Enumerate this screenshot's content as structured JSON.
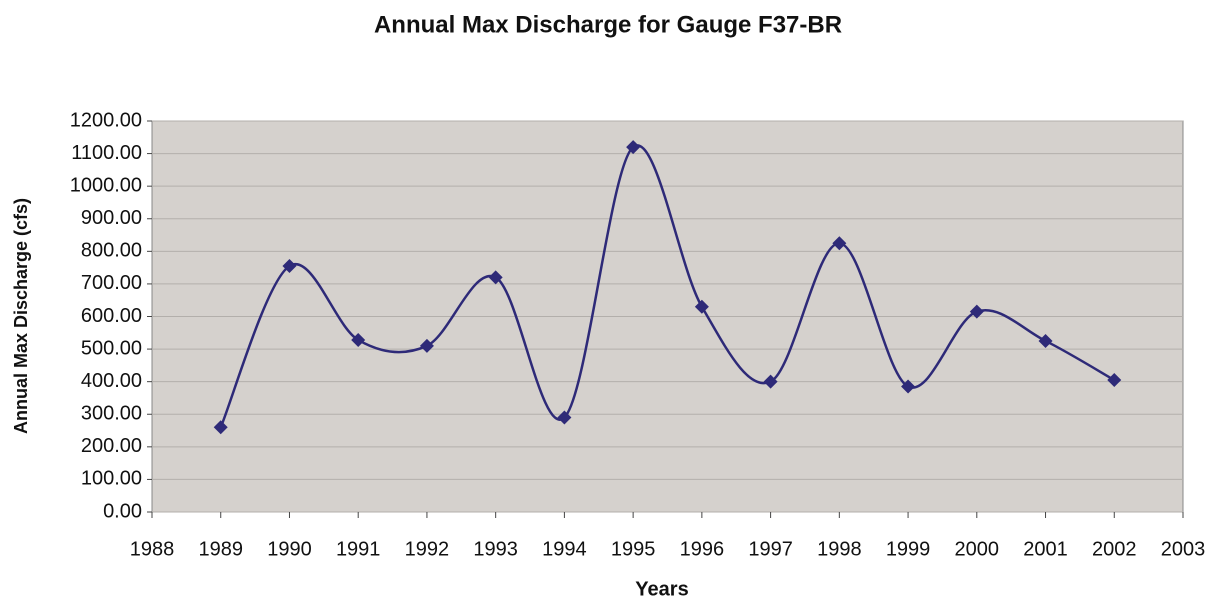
{
  "chart_data": {
    "type": "line",
    "title": "Annual Max Discharge for Gauge F37-BR",
    "xlabel": "Years",
    "ylabel": "Annual Max Discharge (cfs)",
    "x": [
      1989,
      1990,
      1991,
      1992,
      1993,
      1994,
      1995,
      1996,
      1997,
      1998,
      1999,
      2000,
      2001,
      2002
    ],
    "series": [
      {
        "name": "Annual Max Discharge",
        "color": "#2e2a78",
        "values": [
          260,
          755,
          528,
          510,
          720,
          290,
          1120,
          630,
          400,
          825,
          385,
          615,
          525,
          405
        ]
      }
    ],
    "xlim": [
      1988,
      2003
    ],
    "xticks": [
      1988,
      1989,
      1990,
      1991,
      1992,
      1993,
      1994,
      1995,
      1996,
      1997,
      1998,
      1999,
      2000,
      2001,
      2002,
      2003
    ],
    "ylim": [
      0,
      1200
    ],
    "yticks": [
      {
        "value": 0,
        "label": "0.00"
      },
      {
        "value": 100,
        "label": "100.00"
      },
      {
        "value": 200,
        "label": "200.00"
      },
      {
        "value": 300,
        "label": "300.00"
      },
      {
        "value": 400,
        "label": "400.00"
      },
      {
        "value": 500,
        "label": "500.00"
      },
      {
        "value": 600,
        "label": "600.00"
      },
      {
        "value": 700,
        "label": "700.00"
      },
      {
        "value": 800,
        "label": "800.00"
      },
      {
        "value": 900,
        "label": "900.00"
      },
      {
        "value": 1000,
        "label": "1000.00"
      },
      {
        "value": 1100,
        "label": "1100.00"
      },
      {
        "value": 1200,
        "label": "1200.00"
      }
    ],
    "grid": true,
    "smooth": true
  }
}
